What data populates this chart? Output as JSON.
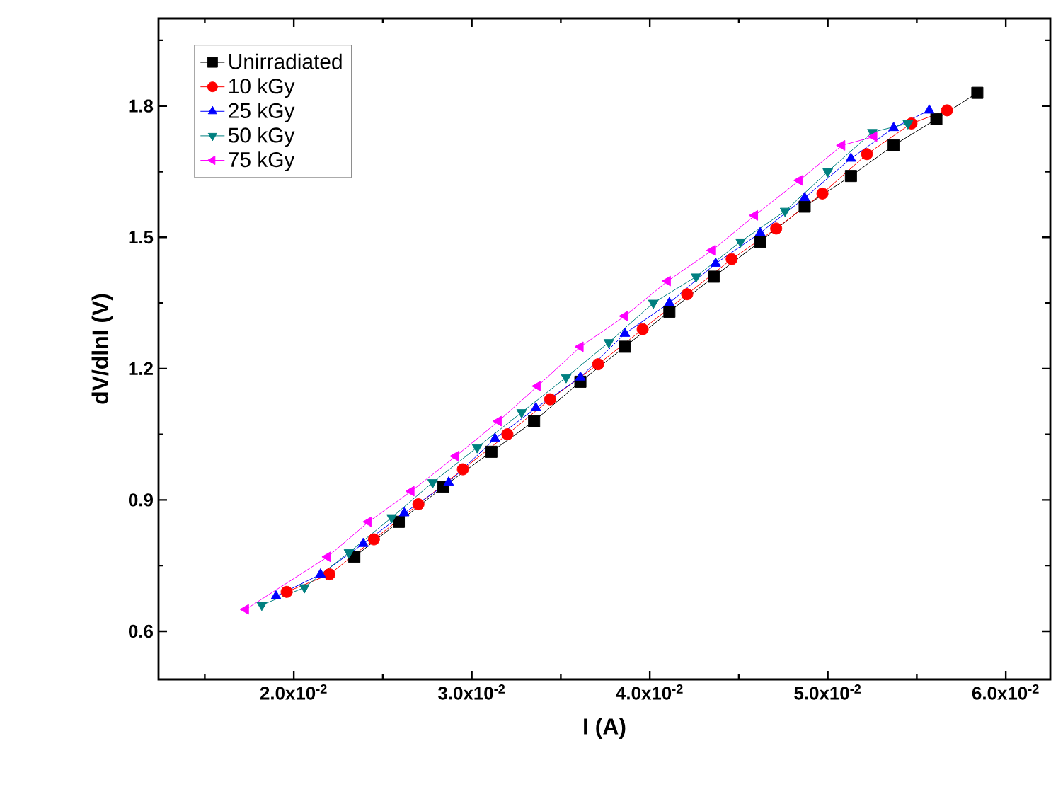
{
  "chart_data": {
    "type": "line",
    "xlabel": "I  (A)",
    "ylabel": "dV/dlnI  (V)",
    "xlim": [
      0.0124,
      0.0625
    ],
    "ylim": [
      0.49,
      2.0
    ],
    "xticks": [
      {
        "value": 0.015,
        "label": null
      },
      {
        "value": 0.02,
        "label": "2.0x10$^{-2}$"
      },
      {
        "value": 0.025,
        "label": null
      },
      {
        "value": 0.03,
        "label": "3.0x10$^{-2}$"
      },
      {
        "value": 0.035,
        "label": null
      },
      {
        "value": 0.04,
        "label": "4.0x10$^{-2}$"
      },
      {
        "value": 0.045,
        "label": null
      },
      {
        "value": 0.05,
        "label": "5.0x10$^{-2}$"
      },
      {
        "value": 0.055,
        "label": null
      },
      {
        "value": 0.06,
        "label": "6.0x10$^{-2}$"
      }
    ],
    "yticks": [
      0.6,
      {
        "value": 0.75,
        "label": null
      },
      0.9,
      {
        "value": 1.05,
        "label": null
      },
      1.2,
      {
        "value": 1.35,
        "label": null
      },
      1.5,
      {
        "value": 1.65,
        "label": null
      },
      1.8,
      {
        "value": 1.95,
        "label": null
      }
    ],
    "legend": "top left",
    "grid": false,
    "series": [
      {
        "name": "Unirradiated",
        "color": "#000000",
        "marker": "square",
        "x": [
          0.0234,
          0.0259,
          0.0284,
          0.0311,
          0.0335,
          0.0361,
          0.0386,
          0.0411,
          0.0436,
          0.0462,
          0.0487,
          0.0513,
          0.0537,
          0.0561,
          0.0584
        ],
        "values": [
          0.77,
          0.85,
          0.93,
          1.01,
          1.08,
          1.17,
          1.25,
          1.33,
          1.41,
          1.49,
          1.57,
          1.64,
          1.71,
          1.77,
          1.83
        ]
      },
      {
        "name": "10 kGy",
        "color": "#ff0000",
        "marker": "circle",
        "x": [
          0.0196,
          0.022,
          0.0245,
          0.027,
          0.0295,
          0.032,
          0.0344,
          0.0371,
          0.0396,
          0.0421,
          0.0446,
          0.0471,
          0.0497,
          0.0522,
          0.0547,
          0.0567
        ],
        "values": [
          0.69,
          0.73,
          0.81,
          0.89,
          0.97,
          1.05,
          1.13,
          1.21,
          1.29,
          1.37,
          1.45,
          1.52,
          1.6,
          1.69,
          1.76,
          1.79
        ]
      },
      {
        "name": "25 kGy",
        "color": "#0000ff",
        "marker": "triangle",
        "x": [
          0.019,
          0.0215,
          0.0239,
          0.0262,
          0.0287,
          0.0313,
          0.0336,
          0.0361,
          0.0386,
          0.0411,
          0.0437,
          0.0462,
          0.0487,
          0.0513,
          0.0537,
          0.0557
        ],
        "values": [
          0.68,
          0.73,
          0.8,
          0.87,
          0.94,
          1.04,
          1.11,
          1.18,
          1.28,
          1.35,
          1.44,
          1.51,
          1.59,
          1.68,
          1.75,
          1.79
        ]
      },
      {
        "name": "50 kGy",
        "color": "#008080",
        "marker": "triangle-down",
        "x": [
          0.0182,
          0.0206,
          0.0231,
          0.0255,
          0.0278,
          0.0303,
          0.0328,
          0.0353,
          0.0377,
          0.0402,
          0.0426,
          0.0451,
          0.0476,
          0.05,
          0.0525,
          0.0545
        ],
        "values": [
          0.66,
          0.7,
          0.78,
          0.86,
          0.94,
          1.02,
          1.1,
          1.18,
          1.26,
          1.35,
          1.41,
          1.49,
          1.56,
          1.65,
          1.74,
          1.76
        ]
      },
      {
        "name": "75 kGy",
        "color": "#ff00ff",
        "marker": "triangle-left",
        "x": [
          0.0173,
          0.0219,
          0.0242,
          0.0266,
          0.0291,
          0.0315,
          0.0337,
          0.0361,
          0.0386,
          0.041,
          0.0435,
          0.0459,
          0.0484,
          0.0508,
          0.0526
        ],
        "values": [
          0.65,
          0.77,
          0.85,
          0.92,
          1.0,
          1.08,
          1.16,
          1.25,
          1.32,
          1.4,
          1.47,
          1.55,
          1.63,
          1.71,
          1.73
        ]
      }
    ]
  }
}
